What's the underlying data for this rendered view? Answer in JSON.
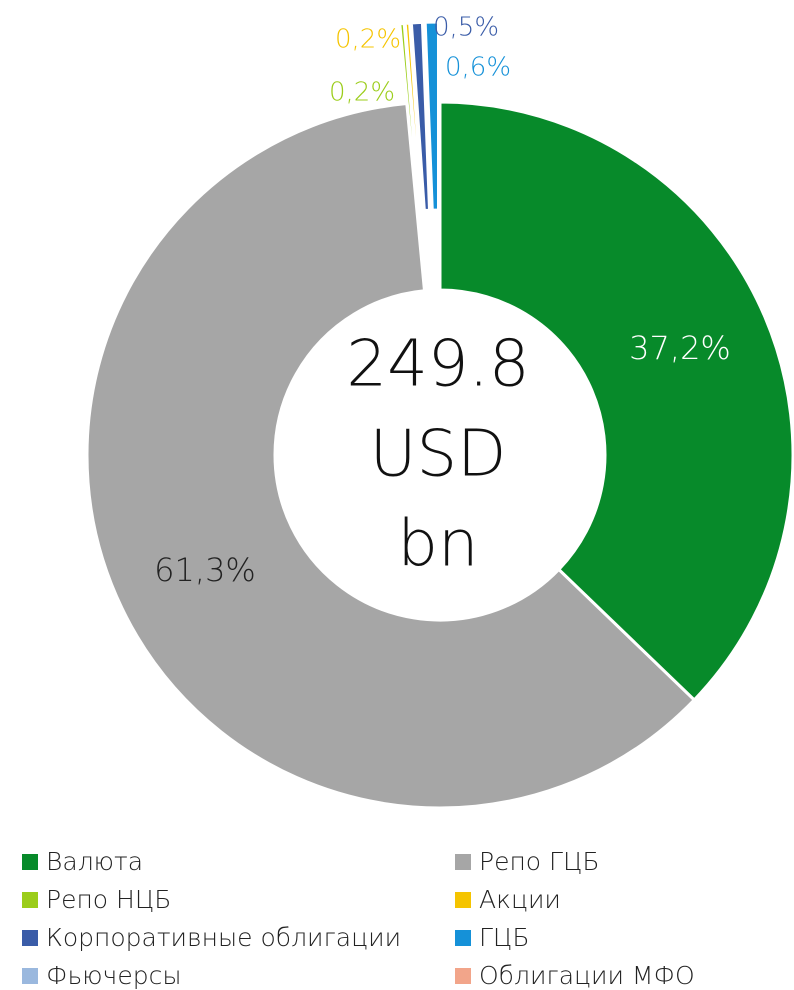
{
  "chart_data": {
    "type": "donut",
    "categories": [
      "Валюта",
      "Репо ГЦБ",
      "Репо НЦБ",
      "Акции",
      "Корпоративные облигации",
      "ГЦБ",
      "Фьючерсы",
      "Облигации МФО"
    ],
    "values": [
      37.2,
      61.3,
      0.2,
      0.2,
      0.5,
      0.6,
      null,
      null
    ],
    "value_labels": [
      "37,2%",
      "61,3%",
      "0,2%",
      "0,2%",
      "0,5%",
      "0,6%",
      null,
      null
    ],
    "colors": [
      "#078a2a",
      "#a6a6a6",
      "#9bcd1a",
      "#f5c400",
      "#3a5ca8",
      "#1591d8",
      "#9ab8de",
      "#f2a58a"
    ],
    "center_label": [
      "249.8",
      "USD",
      "bn"
    ]
  }
}
